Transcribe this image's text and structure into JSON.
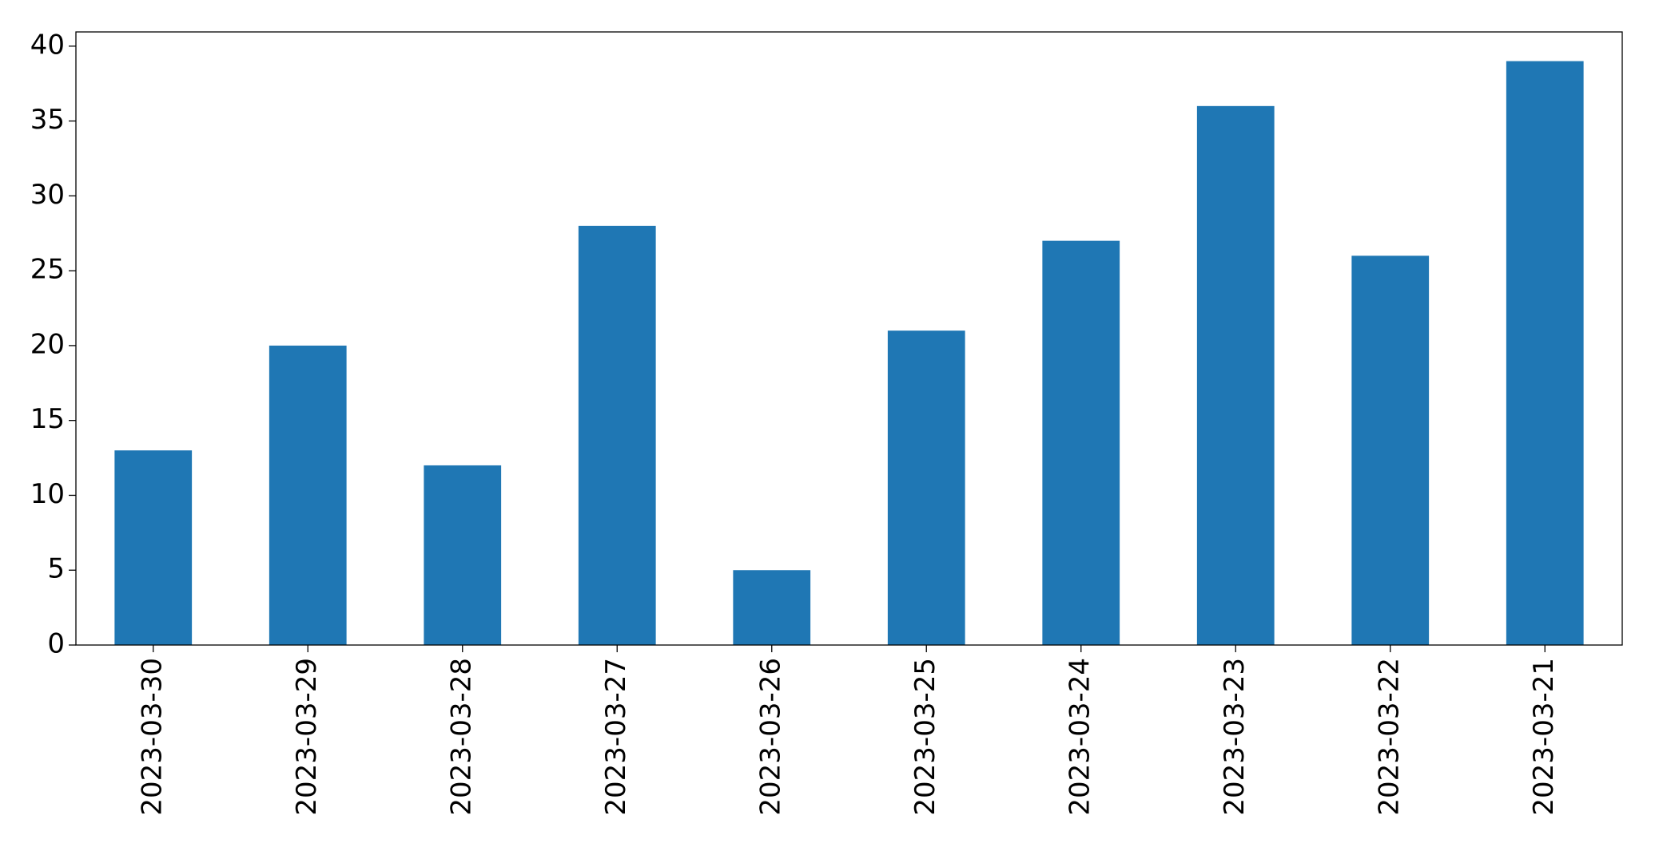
{
  "chart_data": {
    "type": "bar",
    "categories": [
      "2023-03-30",
      "2023-03-29",
      "2023-03-28",
      "2023-03-27",
      "2023-03-26",
      "2023-03-25",
      "2023-03-24",
      "2023-03-23",
      "2023-03-22",
      "2023-03-21"
    ],
    "values": [
      13,
      20,
      12,
      28,
      5,
      21,
      27,
      36,
      26,
      39
    ],
    "color": "#1f77b4",
    "ylim": [
      0,
      40.95
    ],
    "yticks": [
      0,
      5,
      10,
      15,
      20,
      25,
      30,
      35,
      40
    ],
    "grid": false
  }
}
